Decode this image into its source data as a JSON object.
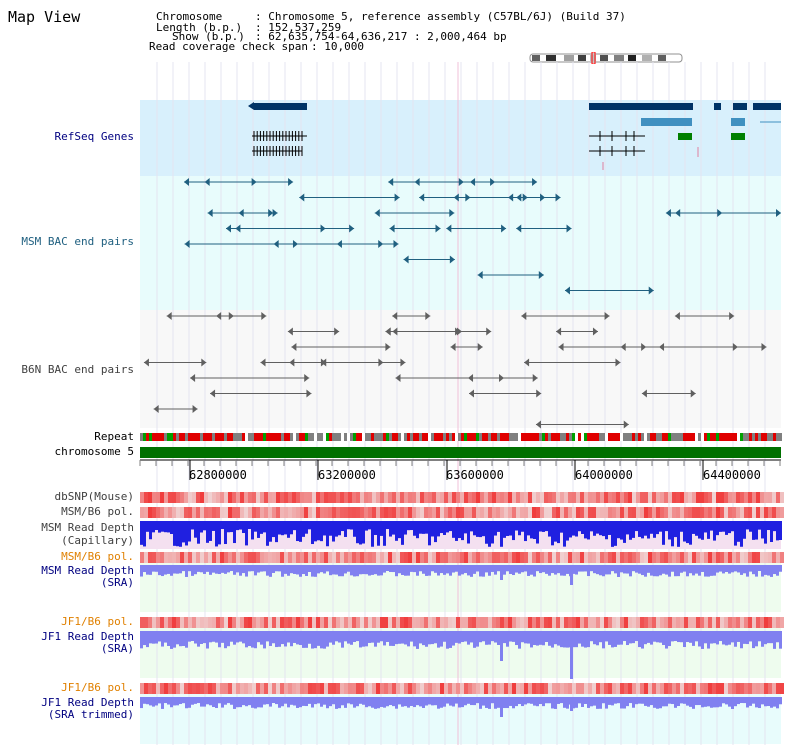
{
  "title": "Map View",
  "header": {
    "chromosome_key": "Chromosome",
    "chromosome_val": ": Chromosome 5, reference assembly (C57BL/6J) (Build 37)",
    "length_key": "Length (b.p.)",
    "length_val": ": 152,537,259",
    "show_key": "Show (b.p.)",
    "show_val": ": 62,635,754-64,636,217 : 2,000,464 bp",
    "coverage_key": "Read coverage check span",
    "coverage_val": ": 10,000"
  },
  "tracks": {
    "refseq": "RefSeq Genes",
    "msm_bac": "MSM BAC end pairs",
    "b6n_bac": "B6N BAC end pairs",
    "repeat": "Repeat",
    "chromosome": "chromosome 5",
    "dbsnp": "dbSNP(Mouse)",
    "msm_b6_pol_1": "MSM/B6 pol.",
    "msm_read_depth_cap_1": "MSM Read Depth",
    "msm_read_depth_cap_2": "(Capillary)",
    "msm_b6_pol_2": "MSM/B6 pol.",
    "msm_read_depth_sra_1": "MSM Read Depth",
    "msm_read_depth_sra_2": "(SRA)",
    "jf1_b6_pol_1": "JF1/B6 pol.",
    "jf1_read_depth_1": "JF1 Read Depth",
    "jf1_read_depth_2": "(SRA)",
    "jf1_b6_pol_2": "JF1/B6 pol.",
    "jf1_read_depth_trim_1": "JF1 Read Depth",
    "jf1_read_depth_trim_2": "(SRA trimmed)"
  },
  "axis": {
    "ticks": [
      "62800000",
      "63200000",
      "63600000",
      "64000000",
      "64400000"
    ]
  },
  "colors": {
    "label_navy": "#000080",
    "label_teal": "#206080",
    "label_gray": "#404040",
    "label_orange": "#e08000",
    "refseq_bg": "#d8f0fc",
    "bac_bg": "#e8fcfc",
    "chrom_green": "#007000",
    "depth_blue": "#2020e0",
    "light_blue": "#8080f0"
  }
}
